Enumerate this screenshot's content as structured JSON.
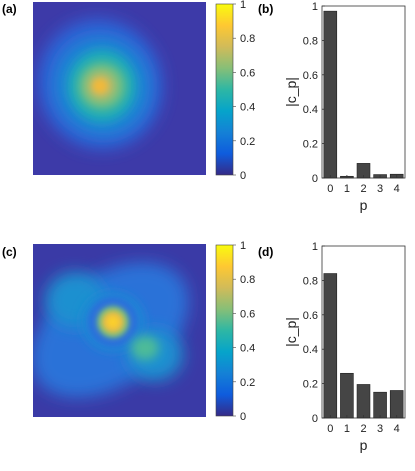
{
  "panels": [
    {
      "id": "a",
      "label": "(a)",
      "type": "intensity-map",
      "description_hidden": true
    },
    {
      "id": "b",
      "label": "(b)"
    },
    {
      "id": "c",
      "label": "(c)",
      "type": "intensity-map"
    },
    {
      "id": "d",
      "label": "(d)"
    }
  ],
  "colorbar": {
    "ticks": [
      "0",
      "0.2",
      "0.4",
      "0.6",
      "0.8",
      "1"
    ],
    "colormap": [
      "#352a87",
      "#0f5cdd",
      "#1481d6",
      "#06a4ca",
      "#2eb7a4",
      "#87bf77",
      "#d1bb59",
      "#fec832",
      "#f9fb0e"
    ]
  },
  "chart_data": [
    {
      "type": "bar",
      "panel": "(b)",
      "categories": [
        "0",
        "1",
        "2",
        "3",
        "4"
      ],
      "values": [
        0.97,
        0.01,
        0.085,
        0.02,
        0.022
      ],
      "xlabel": "p",
      "ylabel": "|c_p|",
      "ylim": [
        0,
        1
      ],
      "yticks": [
        "0",
        "0.2",
        "0.4",
        "0.6",
        "0.8",
        "1"
      ],
      "bar_color": "#454545"
    },
    {
      "type": "bar",
      "panel": "(d)",
      "categories": [
        "0",
        "1",
        "2",
        "3",
        "4"
      ],
      "values": [
        0.84,
        0.26,
        0.195,
        0.15,
        0.16
      ],
      "xlabel": "p",
      "ylabel": "|c_p|",
      "ylim": [
        0,
        1
      ],
      "yticks": [
        "0",
        "0.2",
        "0.4",
        "0.6",
        "0.8",
        "1"
      ],
      "bar_color": "#454545"
    }
  ]
}
